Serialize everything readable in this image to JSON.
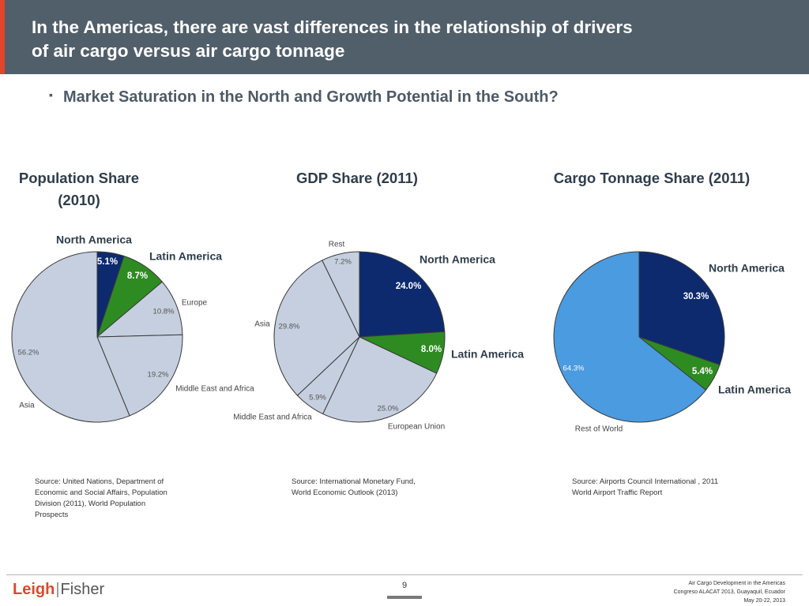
{
  "header": {
    "title": "In the Americas, there are vast differences in the relationship of drivers\nof air cargo versus air cargo tonnage"
  },
  "subtitle": {
    "bullet": "▪",
    "text": "Market Saturation in the North and Growth Potential in the South?"
  },
  "chart_data": [
    {
      "type": "pie",
      "title": "Population Share\n(2010)",
      "series": [
        {
          "name": "North America",
          "value": 5.1,
          "label": "5.1%",
          "color": "#0d2a6e"
        },
        {
          "name": "Latin America",
          "value": 8.7,
          "label": "8.7%",
          "color": "#2e8b22"
        },
        {
          "name": "Europe",
          "value": 10.8,
          "label": "10.8%",
          "color": "#c5cfdf"
        },
        {
          "name": "Middle East and Africa",
          "value": 19.2,
          "label": "19.2%",
          "color": "#c5cfdf"
        },
        {
          "name": "Asia",
          "value": 56.2,
          "label": "56.2%",
          "color": "#c5cfdf"
        }
      ],
      "source": "Source: United Nations, Department of\nEconomic and Social Affairs, Population\nDivision (2011), World Population\nProspects"
    },
    {
      "type": "pie",
      "title": "GDP Share\n(2011)",
      "series": [
        {
          "name": "North America",
          "value": 24.0,
          "label": "24.0%",
          "color": "#0d2a6e"
        },
        {
          "name": "Latin America",
          "value": 8.0,
          "label": "8.0%",
          "color": "#2e8b22"
        },
        {
          "name": "European Union",
          "value": 25.0,
          "label": "25.0%",
          "color": "#c5cfdf"
        },
        {
          "name": "Middle East and Africa",
          "value": 5.9,
          "label": "5.9%",
          "color": "#c5cfdf"
        },
        {
          "name": "Asia",
          "value": 29.8,
          "label": "29.8%",
          "color": "#c5cfdf"
        },
        {
          "name": "Rest",
          "value": 7.2,
          "label": "7.2%",
          "color": "#c5cfdf"
        }
      ],
      "source": "Source: International Monetary Fund,\nWorld Economic Outlook (2013)"
    },
    {
      "type": "pie",
      "title": "Cargo Tonnage Share\n(2011)",
      "series": [
        {
          "name": "North America",
          "value": 30.3,
          "label": "30.3%",
          "color": "#0d2a6e"
        },
        {
          "name": "Latin America",
          "value": 5.4,
          "label": "5.4%",
          "color": "#2e8b22"
        },
        {
          "name": "Rest of World",
          "value": 64.3,
          "label": "64.3%",
          "color": "#4a9be0"
        }
      ],
      "source": "Source: Airports Council International , 2011\nWorld  Airport Traffic Report"
    }
  ],
  "footer": {
    "logo_left": "Leigh",
    "logo_sep": "|",
    "logo_right": "Fisher",
    "page": "9",
    "note": "Air Cargo Development in the Americas\nCongreso ALACAT 2013, Guayaquil, Ecuador\nMay 20-22, 2013"
  }
}
